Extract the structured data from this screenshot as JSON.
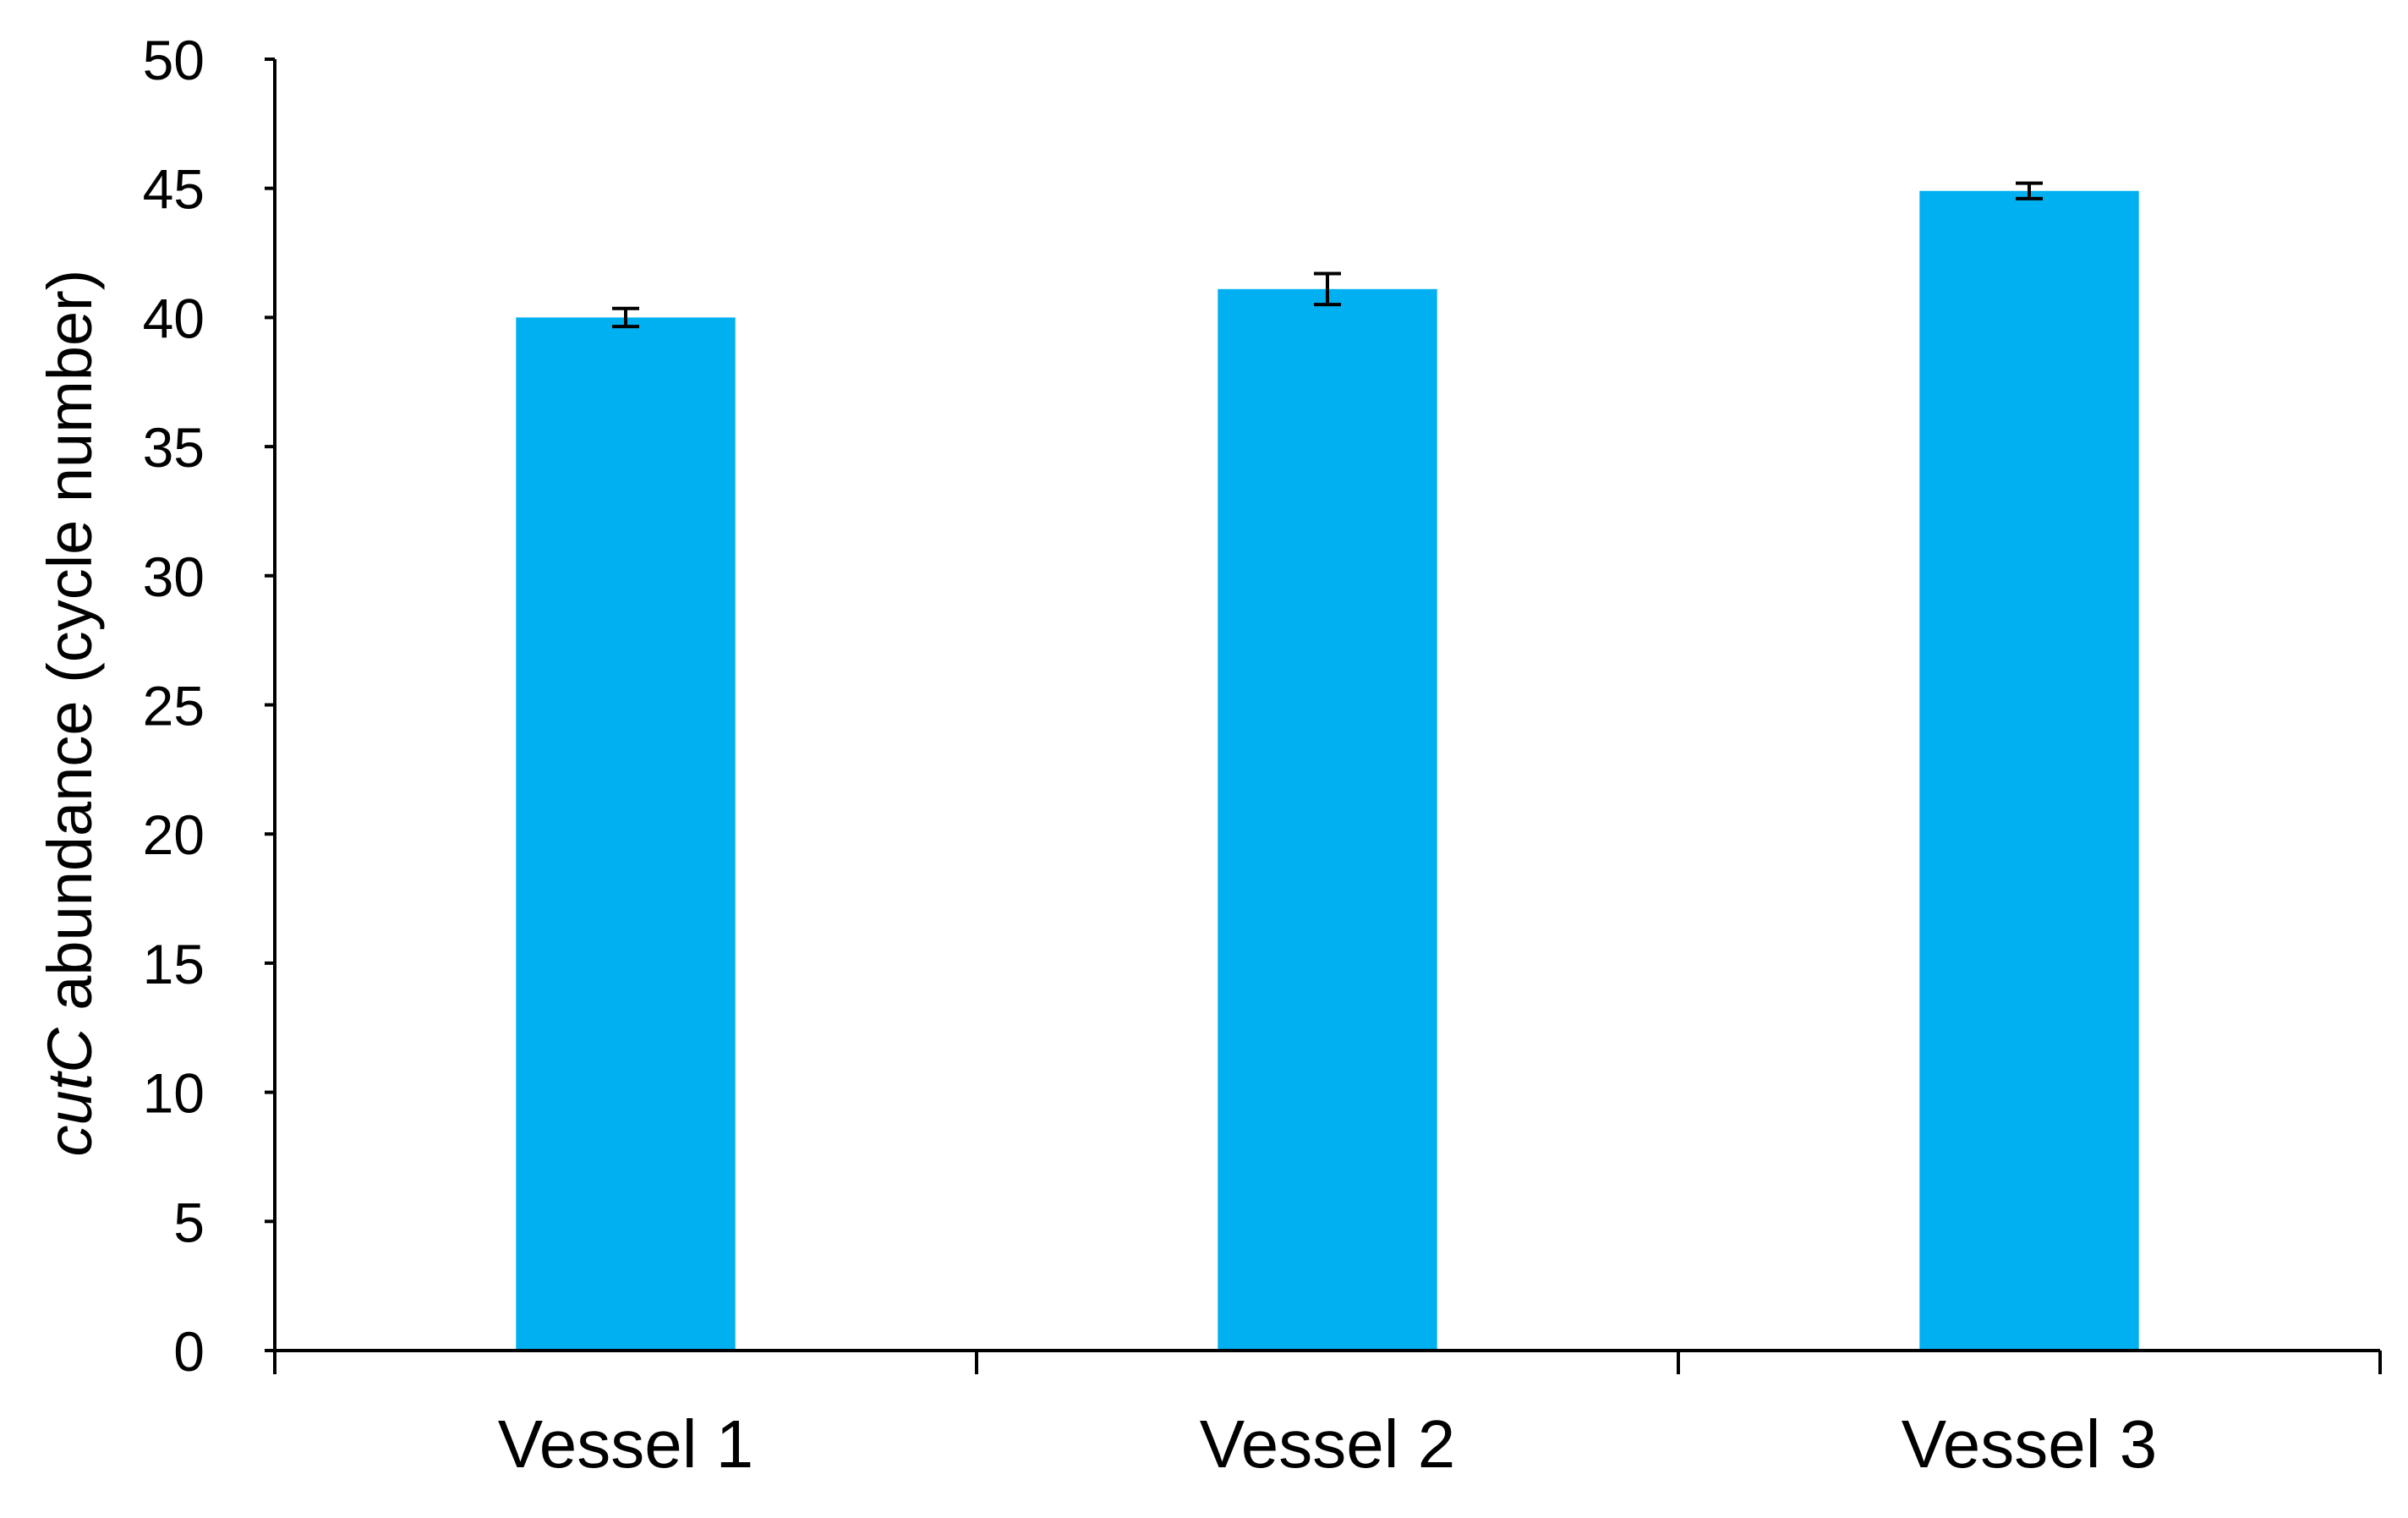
{
  "chart_data": {
    "type": "bar",
    "title": "",
    "xlabel": "",
    "ylabel_italic": "cutC",
    "ylabel_rest": " abundance (cycle number)",
    "categories": [
      "Vessel 1",
      "Vessel 2",
      "Vessel 3"
    ],
    "values": [
      40.0,
      41.1,
      44.9
    ],
    "error": [
      0.35,
      0.6,
      0.3
    ],
    "ylim": [
      0,
      50
    ],
    "yticks": [
      "0",
      "5",
      "10",
      "15",
      "20",
      "25",
      "30",
      "35",
      "40",
      "45",
      "50"
    ],
    "bar_color": "#00B0F0",
    "error_color": "#000000",
    "axis_color": "#000000",
    "grid": false,
    "legend": "none"
  }
}
